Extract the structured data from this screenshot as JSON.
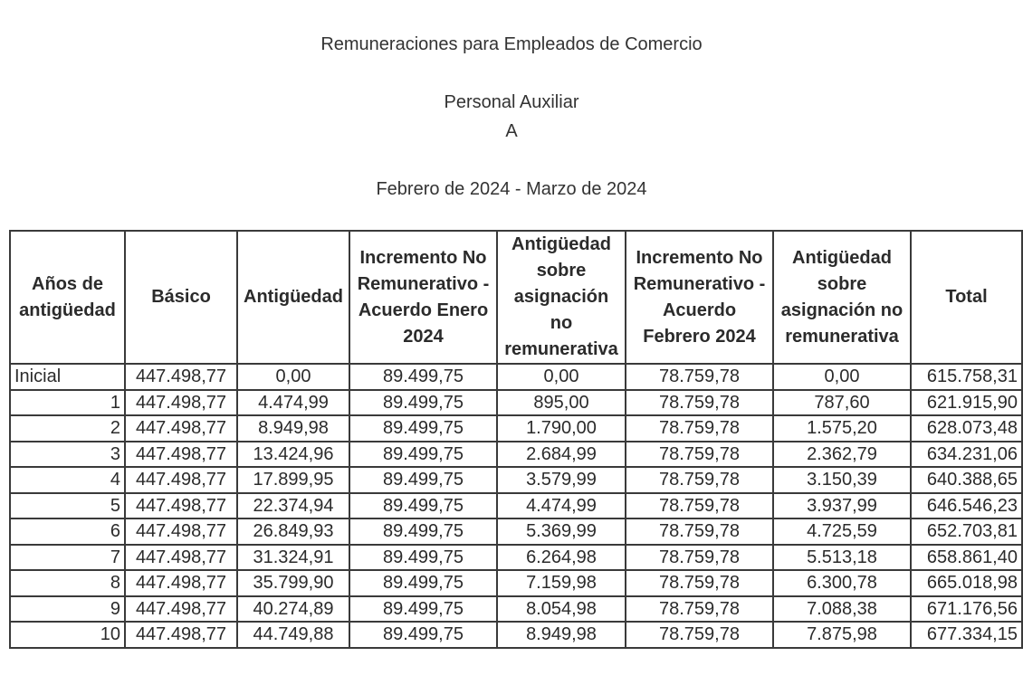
{
  "document": {
    "title": "Remuneraciones para Empleados de Comercio",
    "category": "Personal Auxiliar",
    "subcategory": "A",
    "period": "Febrero de 2024 - Marzo de 2024"
  },
  "table": {
    "headers": [
      "Años de antigüedad",
      "Básico",
      "Antigüedad",
      "Incremento No Remunerativo - Acuerdo Enero 2024",
      "Antigüedad sobre asignación no remunerativa",
      "Incremento No Remunerativo - Acuerdo Febrero 2024",
      "Antigüedad sobre asignación no remunerativa",
      "Total"
    ],
    "rows": [
      [
        "Inicial",
        "447.498,77",
        "0,00",
        "89.499,75",
        "0,00",
        "78.759,78",
        "0,00",
        "615.758,31"
      ],
      [
        "1",
        "447.498,77",
        "4.474,99",
        "89.499,75",
        "895,00",
        "78.759,78",
        "787,60",
        "621.915,90"
      ],
      [
        "2",
        "447.498,77",
        "8.949,98",
        "89.499,75",
        "1.790,00",
        "78.759,78",
        "1.575,20",
        "628.073,48"
      ],
      [
        "3",
        "447.498,77",
        "13.424,96",
        "89.499,75",
        "2.684,99",
        "78.759,78",
        "2.362,79",
        "634.231,06"
      ],
      [
        "4",
        "447.498,77",
        "17.899,95",
        "89.499,75",
        "3.579,99",
        "78.759,78",
        "3.150,39",
        "640.388,65"
      ],
      [
        "5",
        "447.498,77",
        "22.374,94",
        "89.499,75",
        "4.474,99",
        "78.759,78",
        "3.937,99",
        "646.546,23"
      ],
      [
        "6",
        "447.498,77",
        "26.849,93",
        "89.499,75",
        "5.369,99",
        "78.759,78",
        "4.725,59",
        "652.703,81"
      ],
      [
        "7",
        "447.498,77",
        "31.324,91",
        "89.499,75",
        "6.264,98",
        "78.759,78",
        "5.513,18",
        "658.861,40"
      ],
      [
        "8",
        "447.498,77",
        "35.799,90",
        "89.499,75",
        "7.159,98",
        "78.759,78",
        "6.300,78",
        "665.018,98"
      ],
      [
        "9",
        "447.498,77",
        "40.274,89",
        "89.499,75",
        "8.054,98",
        "78.759,78",
        "7.088,38",
        "671.176,56"
      ],
      [
        "10",
        "447.498,77",
        "44.749,88",
        "89.499,75",
        "8.949,98",
        "78.759,78",
        "7.875,98",
        "677.334,15"
      ]
    ]
  }
}
